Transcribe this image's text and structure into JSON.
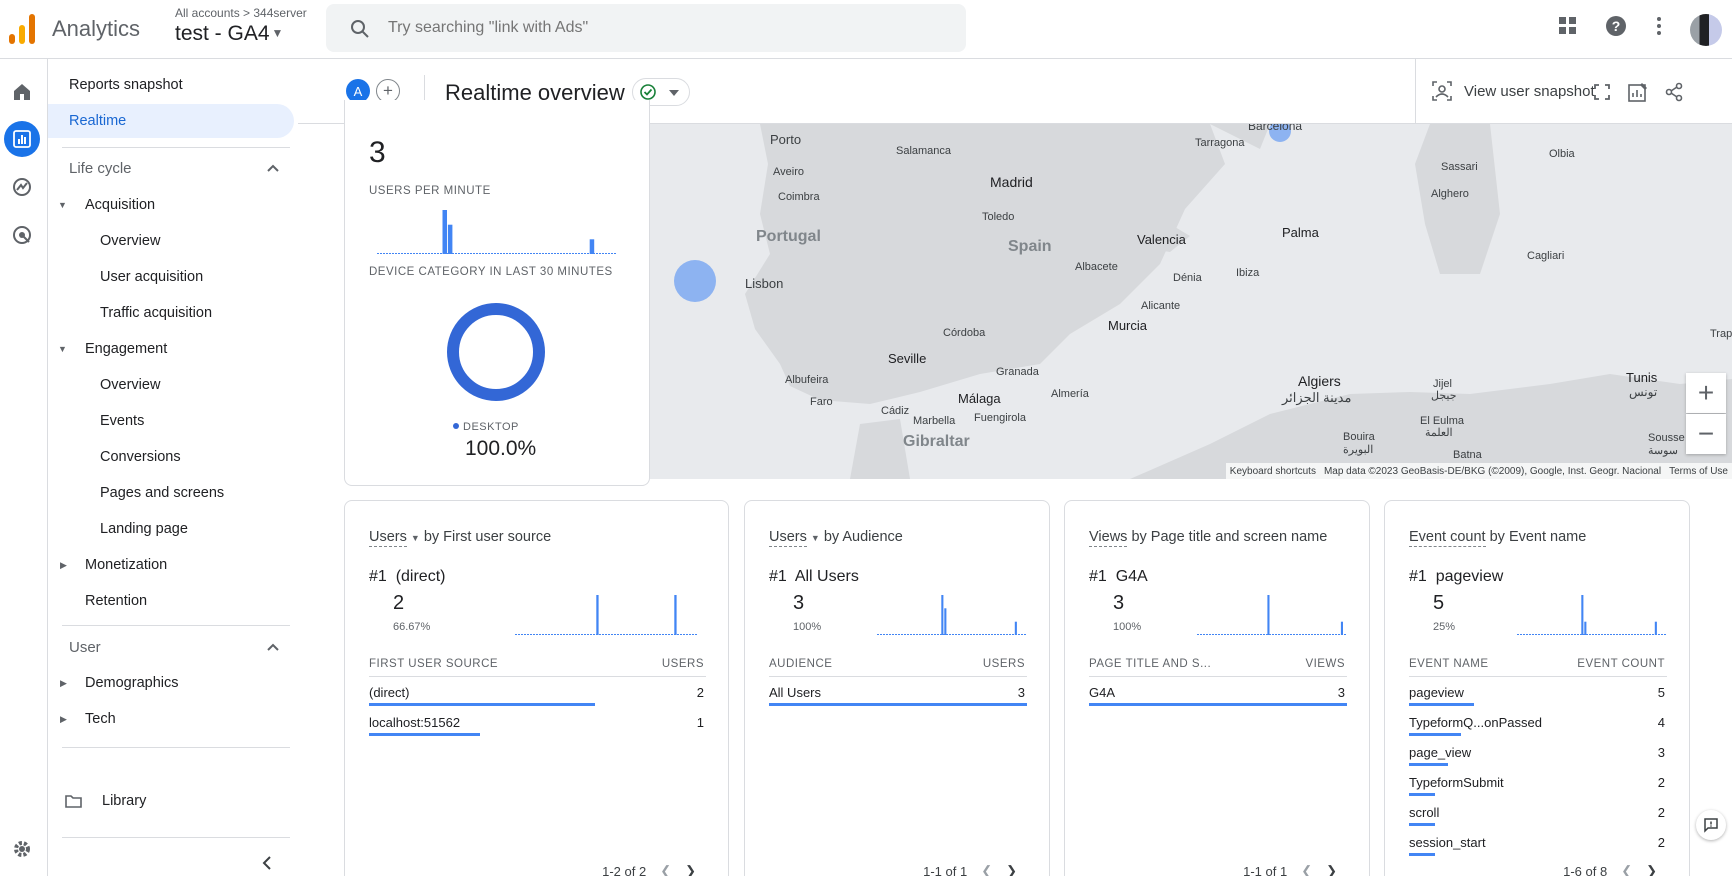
{
  "header": {
    "app_name": "Analytics",
    "account_path": "All accounts > 344server",
    "property_name": "test - GA4",
    "search_placeholder": "Try searching \"link with Ads\""
  },
  "nav": {
    "reports_snapshot": "Reports snapshot",
    "realtime": "Realtime",
    "lifecycle": "Life cycle",
    "acquisition": "Acquisition",
    "acq_overview": "Overview",
    "user_acquisition": "User acquisition",
    "traffic_acquisition": "Traffic acquisition",
    "engagement": "Engagement",
    "eng_overview": "Overview",
    "events": "Events",
    "conversions": "Conversions",
    "pages_and_screens": "Pages and screens",
    "landing_page": "Landing page",
    "monetization": "Monetization",
    "retention": "Retention",
    "user_section": "User",
    "demographics": "Demographics",
    "tech": "Tech",
    "library": "Library"
  },
  "page_header": {
    "avatar_letter": "A",
    "title": "Realtime overview",
    "view_user_snapshot": "View user snapshot"
  },
  "summary": {
    "users_value": "3",
    "users_per_minute_label": "USERS PER MINUTE",
    "device_label": "DEVICE CATEGORY IN LAST 30 MINUTES",
    "device_legend": "DESKTOP",
    "device_pct": "100.0%",
    "per_minute_bars": [
      0,
      0,
      0,
      0,
      0,
      0,
      0,
      0,
      0,
      0,
      0,
      0,
      3,
      2,
      0,
      0,
      0,
      0,
      0,
      0,
      0,
      0,
      0,
      0,
      0,
      0,
      0,
      0,
      0,
      0,
      0,
      0,
      0,
      0,
      0,
      0,
      0,
      0,
      0,
      1,
      0,
      0,
      0,
      0
    ]
  },
  "map": {
    "labels": {
      "porto": "Porto",
      "aveiro": "Aveiro",
      "coimbra": "Coimbra",
      "portugal": "Portugal",
      "lisbon": "Lisbon",
      "salamanca": "Salamanca",
      "madrid": "Madrid",
      "toledo": "Toledo",
      "spain": "Spain",
      "valencia": "Valencia",
      "albacete": "Albacete",
      "alicante": "Alicante",
      "murcia": "Murcia",
      "cordoba": "Córdoba",
      "seville": "Seville",
      "granada": "Granada",
      "malaga": "Málaga",
      "almeria": "Almería",
      "albufeira": "Albufeira",
      "faro": "Faro",
      "cadiz": "Cádiz",
      "marbella": "Marbella",
      "fuengirola": "Fuengirola",
      "gibraltar": "Gibraltar",
      "barcelona": "Barcelona",
      "tarragona": "Tarragona",
      "palma": "Palma",
      "ibiza": "Ibiza",
      "denia": "Dénia",
      "sassari": "Sassari",
      "olbia": "Olbia",
      "alghero": "Alghero",
      "cagliari": "Cagliari",
      "algiers": "Algiers",
      "algiers_ar": "مدينة الجزائر",
      "jijel": "Jijel",
      "jijel_ar": "جيجل",
      "el_eulma": "El Eulma",
      "el_eulma_ar": "العلمة",
      "bouira": "Bouira",
      "bouira_ar": "البويرة",
      "batna": "Batna",
      "tunis": "Tunis",
      "tunis_ar": "تونس",
      "sousse": "Sousse",
      "sousse_ar": "سوسة",
      "trap": "Trap"
    },
    "attribution_shortcuts": "Keyboard shortcuts",
    "attribution_data": "Map data ©2023 GeoBasis-DE/BKG (©2009), Google, Inst. Geogr. Nacional",
    "attribution_terms": "Terms of Use"
  },
  "cards": [
    {
      "title_a": "Users",
      "title_b": " by First user source",
      "rank": "#1",
      "top": "(direct)",
      "value": "2",
      "pct": "66.67%",
      "col1": "FIRST USER SOURCE",
      "col2": "USERS",
      "rows": [
        {
          "label": "(direct)",
          "value": "2",
          "frac": 0.67
        },
        {
          "label": "localhost:51562",
          "value": "1",
          "frac": 0.33
        }
      ],
      "pager": "1-2 of 2",
      "bars": [
        0,
        0,
        0,
        0,
        0,
        0,
        0,
        0,
        0,
        0,
        0,
        0,
        0,
        0,
        0,
        0,
        0,
        0,
        0,
        0,
        0,
        0,
        0,
        0,
        0,
        1,
        0,
        0,
        0,
        0,
        0,
        0,
        0,
        0,
        0,
        0,
        0,
        0,
        0,
        0,
        0,
        0,
        0,
        0,
        0,
        0,
        0,
        0,
        0,
        1,
        0,
        0,
        0,
        0,
        0,
        0
      ]
    },
    {
      "title_a": "Users",
      "title_b": " by Audience",
      "rank": "#1",
      "top": "All Users",
      "value": "3",
      "pct": "100%",
      "col1": "AUDIENCE",
      "col2": "USERS",
      "rows": [
        {
          "label": "All Users",
          "value": "3",
          "frac": 1
        }
      ],
      "pager": "1-1 of 1",
      "bars": [
        0,
        0,
        0,
        0,
        0,
        0,
        0,
        0,
        0,
        0,
        0,
        0,
        0,
        0,
        0,
        0,
        0,
        0,
        0,
        0,
        0,
        3,
        2,
        0,
        0,
        0,
        0,
        0,
        0,
        0,
        0,
        0,
        0,
        0,
        0,
        0,
        0,
        0,
        0,
        0,
        0,
        0,
        0,
        0,
        0,
        1,
        0,
        0,
        0
      ]
    },
    {
      "title_a": "Views",
      "title_b": " by Page title and screen name",
      "rank": "#1",
      "top": "G4A",
      "value": "3",
      "pct": "100%",
      "col1": "PAGE TITLE AND S...",
      "col2": "VIEWS",
      "rows": [
        {
          "label": "G4A",
          "value": "3",
          "frac": 1
        }
      ],
      "pager": "1-1 of 1",
      "bars": [
        0,
        0,
        0,
        0,
        0,
        0,
        0,
        0,
        0,
        0,
        0,
        0,
        0,
        0,
        0,
        0,
        0,
        0,
        0,
        0,
        0,
        0,
        0,
        3,
        0,
        0,
        0,
        0,
        0,
        0,
        0,
        0,
        0,
        0,
        0,
        0,
        0,
        0,
        0,
        0,
        0,
        0,
        0,
        0,
        0,
        0,
        0,
        1,
        0
      ]
    },
    {
      "title_a": "Event count",
      "title_b": " by Event name",
      "rank": "#1",
      "top": "pageview",
      "value": "5",
      "pct": "25%",
      "col1": "EVENT NAME",
      "col2": "EVENT COUNT",
      "rows": [
        {
          "label": "pageview",
          "value": "5",
          "frac": 0.25
        },
        {
          "label": "TypeformQ...onPassed",
          "value": "4",
          "frac": 0.2
        },
        {
          "label": "page_view",
          "value": "3",
          "frac": 0.15
        },
        {
          "label": "TypeformSubmit",
          "value": "2",
          "frac": 0.1
        },
        {
          "label": "scroll",
          "value": "2",
          "frac": 0.1
        },
        {
          "label": "session_start",
          "value": "2",
          "frac": 0.1
        }
      ],
      "pager": "1-6 of 8",
      "bars": [
        0,
        0,
        0,
        0,
        0,
        0,
        0,
        0,
        0,
        0,
        0,
        0,
        0,
        0,
        0,
        0,
        0,
        0,
        0,
        0,
        0,
        3,
        1,
        0,
        0,
        0,
        0,
        0,
        0,
        0,
        0,
        0,
        0,
        0,
        0,
        0,
        0,
        0,
        0,
        0,
        0,
        0,
        0,
        0,
        0,
        1,
        0,
        0,
        0
      ]
    }
  ],
  "colors": {
    "accent": "#1a73e8",
    "bar": "#4285f4",
    "map_bg": "#e8eaed",
    "land": "#d3d5d8"
  }
}
